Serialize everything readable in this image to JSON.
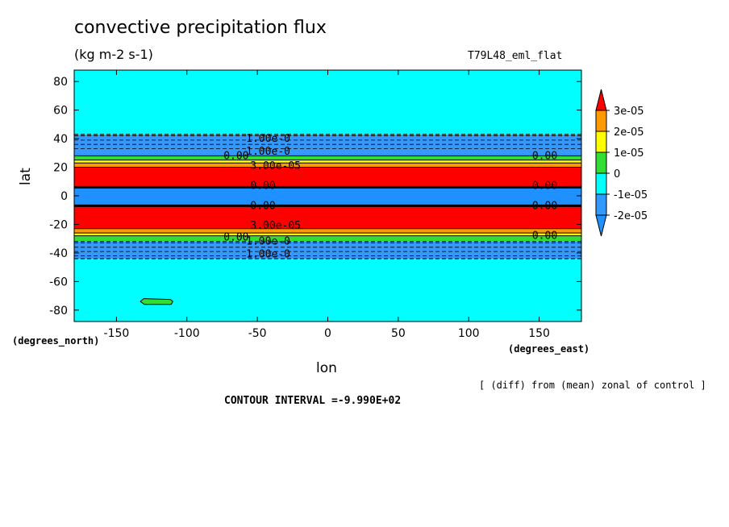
{
  "header": {
    "title": "convective precipitation flux",
    "units": "(kg m-2 s-1)",
    "experiment": "T79L48_eml_flat"
  },
  "footer": {
    "note": "[ (diff) from (mean) zonal of control ]",
    "contour_interval": "CONTOUR INTERVAL =-9.990E+02"
  },
  "chart_data": {
    "type": "heatmap",
    "title": "convective precipitation flux",
    "subtitle": "(kg m-2 s-1)",
    "xlabel": "lon",
    "ylabel": "lat",
    "x_units_label": "(degrees_east)",
    "y_units_label": "(degrees_north)",
    "xlim": [
      -180,
      180
    ],
    "ylim": [
      -88,
      88
    ],
    "x_ticks": [
      -150,
      -100,
      -50,
      0,
      50,
      100,
      150
    ],
    "y_ticks": [
      -80,
      -60,
      -40,
      -20,
      0,
      20,
      40,
      60,
      80
    ],
    "grid": false,
    "colorbar": {
      "placement": "right",
      "labels": [
        "3e-05",
        "2e-05",
        "1e-05",
        "0",
        "-1e-05",
        "-2e-05"
      ],
      "bins": [
        {
          "range": [
            "-inf",
            -2e-05
          ],
          "color": "#1e90ff"
        },
        {
          "range": [
            -2e-05,
            -1e-05
          ],
          "color": "#3399ff"
        },
        {
          "range": [
            -1e-05,
            0
          ],
          "color": "#00ffff"
        },
        {
          "range": [
            0,
            1e-05
          ],
          "color": "#33dd33"
        },
        {
          "range": [
            1e-05,
            2e-05
          ],
          "color": "#ffff00"
        },
        {
          "range": [
            2e-05,
            3e-05
          ],
          "color": "#ff9900"
        },
        {
          "range": [
            3e-05,
            "inf"
          ],
          "color": "#ff0000"
        }
      ]
    },
    "zonal_bands": [
      {
        "lat_range": [
          -88,
          -44
        ],
        "color": "#00ffff"
      },
      {
        "lat_range": [
          -44,
          -32
        ],
        "color": "#3399ff"
      },
      {
        "lat_range": [
          -32,
          -28
        ],
        "color": "#33dd33"
      },
      {
        "lat_range": [
          -28,
          -26
        ],
        "color": "#ffff00"
      },
      {
        "lat_range": [
          -26,
          -23
        ],
        "color": "#ff9900"
      },
      {
        "lat_range": [
          -23,
          -7
        ],
        "color": "#ff0000"
      },
      {
        "lat_range": [
          -7,
          6
        ],
        "color": "#1e90ff"
      },
      {
        "lat_range": [
          6,
          20
        ],
        "color": "#ff0000"
      },
      {
        "lat_range": [
          20,
          23
        ],
        "color": "#ff9900"
      },
      {
        "lat_range": [
          23,
          25
        ],
        "color": "#ffff00"
      },
      {
        "lat_range": [
          25,
          28
        ],
        "color": "#33dd33"
      },
      {
        "lat_range": [
          28,
          43
        ],
        "color": "#3399ff"
      },
      {
        "lat_range": [
          43,
          88
        ],
        "color": "#00ffff"
      }
    ],
    "local_features": [
      {
        "lon_range": [
          -133,
          -110
        ],
        "lat_range": [
          -76,
          -72
        ],
        "color": "#33dd33"
      }
    ],
    "contour_labels": [
      {
        "text": "1.00e-0",
        "lon": -58,
        "lat": 40
      },
      {
        "text": "1.00e-0",
        "lon": -58,
        "lat": 31
      },
      {
        "text": "0.00",
        "lon": -74,
        "lat": 28
      },
      {
        "text": "3.00e-05",
        "lon": -55,
        "lat": 21
      },
      {
        "text": "0.00",
        "lon": -55,
        "lat": 7
      },
      {
        "text": "0.00",
        "lon": -55,
        "lat": -7
      },
      {
        "text": "3.00e-05",
        "lon": -55,
        "lat": -21
      },
      {
        "text": "1.00e-0",
        "lon": -58,
        "lat": -32
      },
      {
        "text": "0.00",
        "lon": -74,
        "lat": -29
      },
      {
        "text": "1.00e-0",
        "lon": -58,
        "lat": -41
      },
      {
        "text": "0.00",
        "lon": 145,
        "lat": 28
      },
      {
        "text": "0.00",
        "lon": 145,
        "lat": 7
      },
      {
        "text": "0.00",
        "lon": 145,
        "lat": -7
      },
      {
        "text": "0.00",
        "lon": 145,
        "lat": -28
      }
    ]
  }
}
